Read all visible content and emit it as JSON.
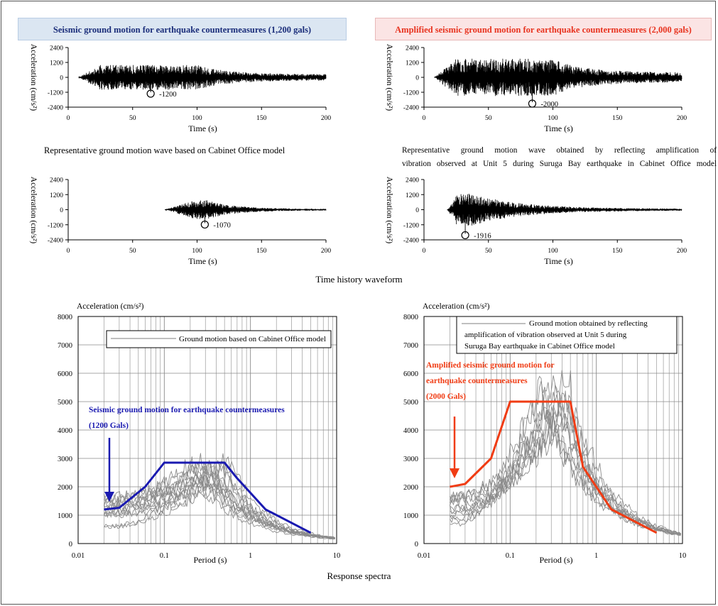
{
  "headers": {
    "left": "Seismic ground motion for earthquake countermeasures (1,200 gals)",
    "right": "Amplified seismic ground motion for earthquake countermeasures (2,000 gals)"
  },
  "captions": {
    "waveform_left": "Representative ground motion wave based on Cabinet Office model",
    "waveform_right_line1": "Representative ground motion wave obtained by reflecting amplification of",
    "waveform_right_line2": "vibration observed at Unit 5 during Suruga Bay earthquake in Cabinet Office model",
    "time_history": "Time history waveform",
    "response_spectra": "Response spectra"
  },
  "colors": {
    "blue": "#1a1ab0",
    "red": "#f03c14",
    "gray": "#8c8c8c",
    "grid": "#8a8a8a"
  },
  "chart_data": [
    {
      "id": "wave-1200",
      "type": "line",
      "xlabel": "Time (s)",
      "ylabel": "Acceleration (cm/s²)",
      "xlim": [
        0,
        200
      ],
      "ylim": [
        -2400,
        2400
      ],
      "xticks": [
        0,
        50,
        100,
        150,
        200
      ],
      "yticks": [
        2400,
        1200,
        0,
        -1200,
        -2400
      ],
      "envelope": {
        "start": 8,
        "peak_start": 25,
        "peak_end": 100,
        "end": 200,
        "amplitude": 1000,
        "tail": 250
      },
      "peak": {
        "t": 64,
        "value": -1200,
        "label": "-1200"
      }
    },
    {
      "id": "wave-2000",
      "type": "line",
      "xlabel": "Time (s)",
      "ylabel": "Acceleration (cm/s²)",
      "xlim": [
        0,
        200
      ],
      "ylim": [
        -2400,
        2400
      ],
      "xticks": [
        0,
        50,
        100,
        150,
        200
      ],
      "yticks": [
        2400,
        1200,
        0,
        -1200,
        -2400
      ],
      "envelope": {
        "start": 8,
        "peak_start": 25,
        "peak_end": 100,
        "end": 200,
        "amplitude": 1500,
        "tail": 400
      },
      "peak": {
        "t": 84,
        "value": -2000,
        "label": "-2000"
      }
    },
    {
      "id": "wave-1070",
      "type": "line",
      "xlabel": "Time (s)",
      "ylabel": "Acceleration (cm/s²)",
      "xlim": [
        0,
        200
      ],
      "ylim": [
        -2400,
        2400
      ],
      "xticks": [
        0,
        50,
        100,
        150,
        200
      ],
      "yticks": [
        2400,
        1200,
        0,
        -1200,
        -2400
      ],
      "envelope": {
        "start": 75,
        "peak_start": 98,
        "peak_end": 108,
        "end": 200,
        "amplitude": 750,
        "tail": 60
      },
      "peak": {
        "t": 106,
        "value": -1070,
        "label": "-1070"
      }
    },
    {
      "id": "wave-1916",
      "type": "line",
      "xlabel": "Time (s)",
      "ylabel": "Acceleration (cm/s²)",
      "xlim": [
        0,
        200
      ],
      "ylim": [
        -2400,
        2400
      ],
      "xticks": [
        0,
        50,
        100,
        150,
        200
      ],
      "yticks": [
        2400,
        1200,
        0,
        -1200,
        -2400
      ],
      "envelope": {
        "start": 18,
        "peak_start": 26,
        "peak_end": 36,
        "end": 200,
        "amplitude": 1300,
        "tail": 70
      },
      "peak": {
        "t": 32,
        "value": -1916,
        "label": "-1916"
      }
    },
    {
      "id": "spectrum-1200",
      "type": "line",
      "xscale": "log",
      "xlabel": "Period (s)",
      "ylabel": "Acceleration (cm/s²)",
      "xlim": [
        0.01,
        10
      ],
      "ylim": [
        0,
        8000
      ],
      "xticks": [
        "0.01",
        "0.1",
        "1",
        "10"
      ],
      "yticks": [
        0,
        1000,
        2000,
        3000,
        4000,
        5000,
        6000,
        7000,
        8000
      ],
      "grid": true,
      "legend": "Ground motion based on Cabinet Office model",
      "design_label": [
        "Seismic ground motion for earthquake countermeasures",
        "(1200 Gals)"
      ],
      "design_spectrum": {
        "x": [
          0.02,
          0.03,
          0.06,
          0.1,
          0.5,
          0.7,
          1.5,
          5
        ],
        "y": [
          1200,
          1260,
          2000,
          2850,
          2850,
          2300,
          1200,
          380
        ]
      },
      "observed_curves": {
        "count": 13,
        "x_range": [
          0.02,
          10
        ],
        "peak_range": [
          1900,
          2950
        ]
      }
    },
    {
      "id": "spectrum-2000",
      "type": "line",
      "xscale": "log",
      "xlabel": "Period (s)",
      "ylabel": "Acceleration (cm/s²)",
      "xlim": [
        0.01,
        10
      ],
      "ylim": [
        0,
        8000
      ],
      "xticks": [
        "0.01",
        "0.1",
        "1",
        "10"
      ],
      "yticks": [
        0,
        1000,
        2000,
        3000,
        4000,
        5000,
        6000,
        7000,
        8000
      ],
      "grid": true,
      "legend": "Ground motion obtained by reflecting amplification of vibration observed at Unit 5 during Suruga Bay earthquake in Cabinet Office model",
      "design_label": [
        "Amplified seismic ground motion for",
        "earthquake countermeasures",
        "(2000 Gals)"
      ],
      "design_spectrum": {
        "x": [
          0.02,
          0.03,
          0.06,
          0.1,
          0.5,
          0.7,
          1.5,
          5
        ],
        "y": [
          2000,
          2100,
          3000,
          5000,
          5000,
          2700,
          1200,
          380
        ]
      },
      "observed_curves": {
        "count": 11,
        "x_range": [
          0.02,
          10
        ],
        "peak_range": [
          4200,
          6000
        ]
      }
    }
  ]
}
